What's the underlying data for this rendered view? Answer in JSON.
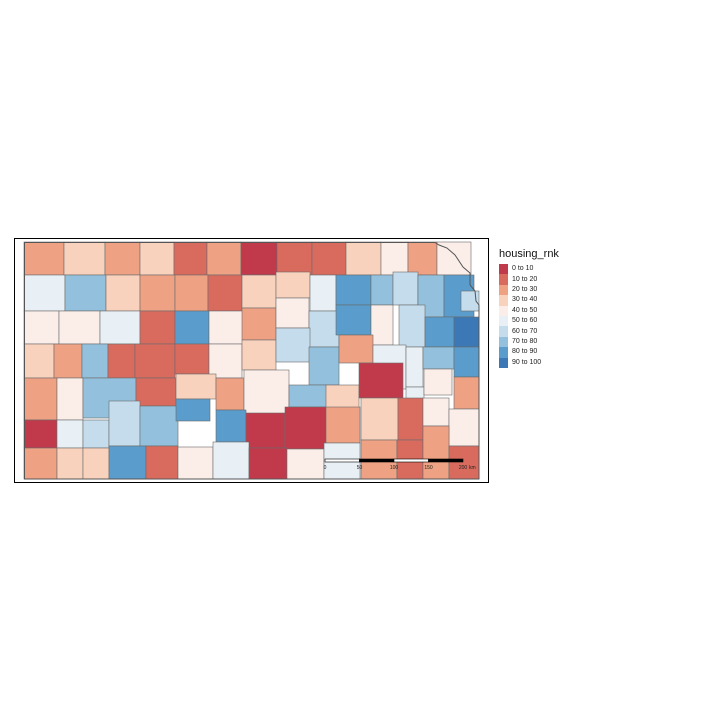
{
  "legend": {
    "title": "housing_rnk",
    "classes": [
      {
        "label": "0 to 10",
        "color": "#c13a4b"
      },
      {
        "label": "10 to 20",
        "color": "#d96b5e"
      },
      {
        "label": "20 to 30",
        "color": "#eea183"
      },
      {
        "label": "30 to 40",
        "color": "#f9d2bd"
      },
      {
        "label": "40 to 50",
        "color": "#fbeee9"
      },
      {
        "label": "50 to 60",
        "color": "#e8f0f6"
      },
      {
        "label": "60 to 70",
        "color": "#c4dcec"
      },
      {
        "label": "70 to 80",
        "color": "#93c1dd"
      },
      {
        "label": "80 to 90",
        "color": "#5a9ccb"
      },
      {
        "label": "90 to 100",
        "color": "#3b78b5"
      }
    ]
  },
  "scale_bar": {
    "ticks": [
      "0",
      "50",
      "100",
      "150",
      "200"
    ],
    "unit": "km"
  },
  "counties": [
    {
      "c": 2
    },
    {
      "c": 3
    },
    {
      "c": 2
    },
    {
      "c": 3
    },
    {
      "c": 1
    },
    {
      "c": 2
    },
    {
      "c": 0
    },
    {
      "c": 1
    },
    {
      "c": 1
    },
    {
      "c": 3
    },
    {
      "c": 4
    },
    {
      "c": 2
    },
    {
      "c": 4
    },
    {
      "c": 5
    },
    {
      "c": 7
    },
    {
      "c": 3
    },
    {
      "c": 2
    },
    {
      "c": 2
    },
    {
      "c": 1
    },
    {
      "c": 3
    },
    {
      "c": 3
    },
    {
      "c": 5
    },
    {
      "c": 8
    },
    {
      "c": 7
    },
    {
      "c": 6
    },
    {
      "c": 4
    },
    {
      "c": 7
    },
    {
      "c": 8
    },
    {
      "c": 6
    },
    {
      "c": 4
    },
    {
      "c": 4
    },
    {
      "c": 5
    },
    {
      "c": 1
    },
    {
      "c": 8
    },
    {
      "c": 4
    },
    {
      "c": 2
    },
    {
      "c": 4
    },
    {
      "c": 6
    },
    {
      "c": 8
    },
    {
      "c": 4
    },
    {
      "c": 6
    },
    {
      "c": 8
    },
    {
      "c": 9
    },
    {
      "c": 3
    },
    {
      "c": 2
    },
    {
      "c": 7
    },
    {
      "c": 1
    },
    {
      "c": 1
    },
    {
      "c": 1
    },
    {
      "c": 4
    },
    {
      "c": 3
    },
    {
      "c": 6
    },
    {
      "c": 7
    },
    {
      "c": 2
    },
    {
      "c": 5
    },
    {
      "c": 5
    },
    {
      "c": 7
    },
    {
      "c": 8
    },
    {
      "c": 2
    },
    {
      "c": 4
    },
    {
      "c": 7
    },
    {
      "c": 1
    },
    {
      "c": 3
    },
    {
      "c": 2
    },
    {
      "c": 4
    },
    {
      "c": 7
    },
    {
      "c": 3
    },
    {
      "c": 0
    },
    {
      "c": 5
    },
    {
      "c": 4
    },
    {
      "c": 2
    },
    {
      "c": 0
    },
    {
      "c": 5
    },
    {
      "c": 6
    },
    {
      "c": 6
    },
    {
      "c": 7
    },
    {
      "c": 8
    },
    {
      "c": 8
    },
    {
      "c": 0
    },
    {
      "c": 0
    },
    {
      "c": 2
    },
    {
      "c": 3
    },
    {
      "c": 1
    },
    {
      "c": 4
    },
    {
      "c": 4
    },
    {
      "c": 2
    },
    {
      "c": 3
    },
    {
      "c": 3
    },
    {
      "c": 8
    },
    {
      "c": 1
    },
    {
      "c": 4
    },
    {
      "c": 5
    },
    {
      "c": 0
    },
    {
      "c": 4
    },
    {
      "c": 5
    },
    {
      "c": 2
    },
    {
      "c": 1
    },
    {
      "c": 2
    },
    {
      "c": 1
    },
    {
      "c": 1
    },
    {
      "c": 4
    },
    {
      "c": 5
    },
    {
      "c": 0
    },
    {
      "c": 3
    },
    {
      "c": 3
    },
    {
      "c": 3
    }
  ]
}
